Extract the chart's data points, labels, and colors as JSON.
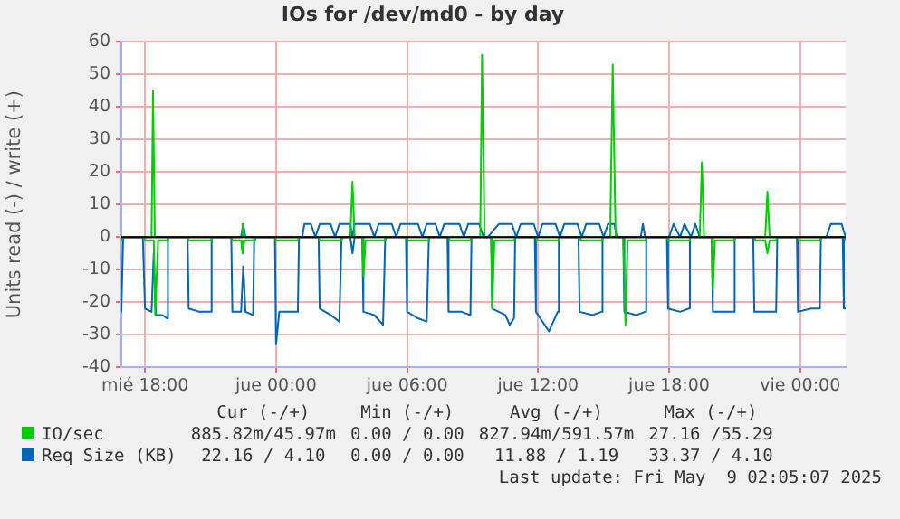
{
  "chart_data": {
    "type": "line",
    "title": "IOs for /dev/md0 - by day",
    "ylabel": "Units read (-) / write (+)",
    "xlim": [
      "2025-05-07T16:55",
      "2025-05-09T02:05"
    ],
    "xticks": [
      {
        "value": "2025-05-07T18:00",
        "label": "mié 18:00"
      },
      {
        "value": "2025-05-08T00:00",
        "label": "jue 00:00"
      },
      {
        "value": "2025-05-08T06:00",
        "label": "jue 06:00"
      },
      {
        "value": "2025-05-08T12:00",
        "label": "jue 12:00"
      },
      {
        "value": "2025-05-08T18:00",
        "label": "jue 18:00"
      },
      {
        "value": "2025-05-09T00:00",
        "label": "vie 00:00"
      }
    ],
    "ylim": [
      -40,
      60
    ],
    "yticks": [
      -40,
      -30,
      -20,
      -10,
      0,
      10,
      20,
      30,
      40,
      50,
      60
    ],
    "grid": true,
    "legend": "bottom",
    "marker": "none",
    "line_style": "solid",
    "ref_lines": [
      {
        "axis": "y",
        "value": 0,
        "color": "#000000"
      }
    ],
    "series": [
      {
        "color": "#00cc00",
        "x": [
          "2025-05-07T16:55",
          "2025-05-07T17:00",
          "2025-05-07T17:57",
          "2025-05-07T18:00",
          "2025-05-07T18:24",
          "2025-05-07T18:28",
          "2025-05-07T18:36",
          "2025-05-07T19:00",
          "2025-05-07T19:03",
          "2025-05-07T19:57",
          "2025-05-07T20:00",
          "2025-05-07T21:00",
          "2025-05-07T21:03",
          "2025-05-07T21:57",
          "2025-05-07T22:00",
          "2025-05-07T22:24",
          "2025-05-07T22:28",
          "2025-05-07T22:33",
          "2025-05-07T23:00",
          "2025-05-07T23:03",
          "2025-05-07T23:57",
          "2025-05-08T00:00",
          "2025-05-08T01:00",
          "2025-05-08T01:03",
          "2025-05-08T01:57",
          "2025-05-08T02:00",
          "2025-05-08T03:00",
          "2025-05-08T03:03",
          "2025-05-08T03:57",
          "2025-05-08T04:00",
          "2025-05-08T04:06",
          "2025-05-08T05:00",
          "2025-05-08T05:03",
          "2025-05-08T05:57",
          "2025-05-08T06:00",
          "2025-05-08T07:00",
          "2025-05-08T07:03",
          "2025-05-08T07:54",
          "2025-05-08T07:57",
          "2025-05-08T08:54",
          "2025-05-08T08:57",
          "2025-05-08T09:51",
          "2025-05-08T09:54",
          "2025-05-08T10:00",
          "2025-05-08T10:54",
          "2025-05-08T10:57",
          "2025-05-08T11:54",
          "2025-05-08T11:57",
          "2025-05-08T12:54",
          "2025-05-08T12:57",
          "2025-05-08T13:54",
          "2025-05-08T13:57",
          "2025-05-08T14:54",
          "2025-05-08T14:57",
          "2025-05-08T15:54",
          "2025-05-08T16:00",
          "2025-05-08T16:06",
          "2025-05-08T16:54",
          "2025-05-08T16:57",
          "2025-05-08T17:54",
          "2025-05-08T17:57",
          "2025-05-08T18:54",
          "2025-05-08T18:57",
          "2025-05-08T19:57",
          "2025-05-08T20:00",
          "2025-05-08T20:06",
          "2025-05-08T20:57",
          "2025-05-08T21:00",
          "2025-05-08T21:54",
          "2025-05-08T21:57",
          "2025-05-08T22:24",
          "2025-05-08T22:30",
          "2025-05-08T22:36",
          "2025-05-08T22:54",
          "2025-05-08T22:57",
          "2025-05-08T23:54",
          "2025-05-08T23:57",
          "2025-05-09T00:54",
          "2025-05-09T00:57",
          "2025-05-09T02:00",
          "2025-05-09T02:05"
        ],
        "values": [
          -1,
          0,
          0,
          -1,
          -1,
          -24,
          -1,
          -1,
          0,
          0,
          -1,
          -1,
          0,
          0,
          -1,
          -1,
          -5,
          -1,
          -1,
          0,
          0,
          -1,
          -1,
          0,
          0,
          -1,
          -1,
          0,
          0,
          -12,
          -1,
          -1,
          0,
          0,
          -1,
          -1,
          0,
          0,
          -1,
          -1,
          0,
          0,
          -22,
          -1,
          -1,
          0,
          0,
          -1,
          -1,
          0,
          0,
          -1,
          -1,
          0,
          0,
          -27,
          -1,
          -1,
          0,
          0,
          -1,
          -1,
          0,
          0,
          -16,
          -1,
          -1,
          0,
          0,
          -1,
          -1,
          -5,
          -1,
          -1,
          0,
          0,
          -1,
          -1,
          0,
          0,
          -1
        ]
      },
      {
        "name": "IO/sec",
        "color": "#00cc00",
        "x": [
          "2025-05-07T16:55",
          "2025-05-07T18:18",
          "2025-05-07T18:22",
          "2025-05-07T18:27",
          "2025-05-07T22:24",
          "2025-05-07T22:28",
          "2025-05-07T22:33",
          "2025-05-08T03:24",
          "2025-05-08T03:30",
          "2025-05-08T03:36",
          "2025-05-08T09:21",
          "2025-05-08T09:26",
          "2025-05-08T09:33",
          "2025-05-08T15:18",
          "2025-05-08T15:25",
          "2025-05-08T15:33",
          "2025-05-08T19:24",
          "2025-05-08T19:30",
          "2025-05-08T19:36",
          "2025-05-08T22:24",
          "2025-05-08T22:30",
          "2025-05-08T22:36",
          "2025-05-09T02:05"
        ],
        "values": [
          0,
          0,
          45,
          0,
          0,
          4,
          0,
          0,
          17,
          0,
          0,
          56,
          0,
          0,
          53,
          0,
          0,
          23,
          0,
          0,
          14,
          0,
          0
        ]
      },
      {
        "color": "#0066b3",
        "x": [
          "2025-05-07T16:55",
          "2025-05-07T17:00",
          "2025-05-07T17:54",
          "2025-05-07T18:00",
          "2025-05-07T18:18",
          "2025-05-07T18:24",
          "2025-05-07T18:30",
          "2025-05-07T18:48",
          "2025-05-07T19:00",
          "2025-05-07T19:03",
          "2025-05-07T19:57",
          "2025-05-07T20:00",
          "2025-05-07T20:30",
          "2025-05-07T21:00",
          "2025-05-07T21:03",
          "2025-05-07T21:57",
          "2025-05-07T22:00",
          "2025-05-07T22:24",
          "2025-05-07T22:30",
          "2025-05-07T22:36",
          "2025-05-07T22:57",
          "2025-05-07T23:00",
          "2025-05-07T23:57",
          "2025-05-08T00:00",
          "2025-05-08T00:09",
          "2025-05-08T01:00",
          "2025-05-08T01:03",
          "2025-05-08T01:57",
          "2025-05-08T02:00",
          "2025-05-08T02:30",
          "2025-05-08T02:54",
          "2025-05-08T03:00",
          "2025-05-08T03:24",
          "2025-05-08T03:30",
          "2025-05-08T03:36",
          "2025-05-08T03:57",
          "2025-05-08T04:00",
          "2025-05-08T04:30",
          "2025-05-08T04:54",
          "2025-05-08T05:00",
          "2025-05-08T05:57",
          "2025-05-08T06:00",
          "2025-05-08T06:30",
          "2025-05-08T06:54",
          "2025-05-08T07:00",
          "2025-05-08T07:51",
          "2025-05-08T07:54",
          "2025-05-08T08:30",
          "2025-05-08T08:54",
          "2025-05-08T08:57",
          "2025-05-08T09:51",
          "2025-05-08T09:54",
          "2025-05-08T10:30",
          "2025-05-08T10:42",
          "2025-05-08T10:54",
          "2025-05-08T10:57",
          "2025-05-08T11:51",
          "2025-05-08T11:54",
          "2025-05-08T12:30",
          "2025-05-08T12:54",
          "2025-05-08T12:57",
          "2025-05-08T13:51",
          "2025-05-08T13:54",
          "2025-05-08T14:30",
          "2025-05-08T14:54",
          "2025-05-08T14:57",
          "2025-05-08T15:54",
          "2025-05-08T15:57",
          "2025-05-08T16:30",
          "2025-05-08T16:54",
          "2025-05-08T16:57",
          "2025-05-08T17:54",
          "2025-05-08T17:57",
          "2025-05-08T18:30",
          "2025-05-08T18:54",
          "2025-05-08T18:57",
          "2025-05-08T19:57",
          "2025-05-08T20:00",
          "2025-05-08T20:30",
          "2025-05-08T20:57",
          "2025-05-08T21:00",
          "2025-05-08T21:51",
          "2025-05-08T21:54",
          "2025-05-08T22:30",
          "2025-05-08T22:54",
          "2025-05-08T22:57",
          "2025-05-08T23:51",
          "2025-05-08T23:54",
          "2025-05-09T00:30",
          "2025-05-09T00:54",
          "2025-05-09T00:57",
          "2025-05-09T01:57",
          "2025-05-09T02:00",
          "2025-05-09T02:05"
        ],
        "values": [
          -23,
          0,
          0,
          -22,
          -23,
          -5,
          -24,
          -24,
          -25,
          0,
          0,
          -22,
          -23,
          -23,
          0,
          0,
          -23,
          -23,
          -9,
          -23,
          -24,
          0,
          0,
          -33,
          -23,
          -23,
          0,
          0,
          -22,
          -24,
          -26,
          0,
          0,
          -5,
          0,
          0,
          -23,
          -24,
          -27,
          0,
          0,
          -23,
          -25,
          -26,
          0,
          0,
          -23,
          -23,
          -24,
          0,
          0,
          -22,
          -24,
          -27,
          -25,
          0,
          0,
          -23,
          -29,
          -23,
          0,
          0,
          -23,
          -24,
          -23,
          0,
          0,
          -23,
          -24,
          -23,
          0,
          0,
          -22,
          -23,
          -22,
          0,
          0,
          -23,
          -23,
          -23,
          0,
          0,
          -23,
          -23,
          -23,
          0,
          0,
          -23,
          -22,
          -22,
          0,
          0,
          -22,
          -22
        ]
      },
      {
        "name": "Req Size (KB)",
        "color": "#0066b3",
        "x": [
          "2025-05-07T16:55",
          "2025-05-07T22:24",
          "2025-05-07T22:30",
          "2025-05-07T22:36",
          "2025-05-08T01:12",
          "2025-05-08T01:18",
          "2025-05-08T01:36",
          "2025-05-08T01:48",
          "2025-05-08T02:00",
          "2025-05-08T02:30",
          "2025-05-08T02:42",
          "2025-05-08T02:54",
          "2025-05-08T03:24",
          "2025-05-08T03:30",
          "2025-05-08T03:36",
          "2025-05-08T04:18",
          "2025-05-08T04:30",
          "2025-05-08T04:42",
          "2025-05-08T05:18",
          "2025-05-08T05:30",
          "2025-05-08T05:42",
          "2025-05-08T06:30",
          "2025-05-08T06:42",
          "2025-05-08T06:54",
          "2025-05-08T07:18",
          "2025-05-08T07:30",
          "2025-05-08T07:42",
          "2025-05-08T08:24",
          "2025-05-08T08:36",
          "2025-05-08T08:48",
          "2025-05-08T09:18",
          "2025-05-08T09:30",
          "2025-05-08T09:42",
          "2025-05-08T10:12",
          "2025-05-08T10:48",
          "2025-05-08T11:00",
          "2025-05-08T11:12",
          "2025-05-08T11:48",
          "2025-05-08T12:00",
          "2025-05-08T12:12",
          "2025-05-08T12:48",
          "2025-05-08T13:00",
          "2025-05-08T13:12",
          "2025-05-08T13:48",
          "2025-05-08T14:00",
          "2025-05-08T14:12",
          "2025-05-08T14:48",
          "2025-05-08T15:00",
          "2025-05-08T15:12",
          "2025-05-08T15:30",
          "2025-05-08T15:36",
          "2025-05-08T16:42",
          "2025-05-08T16:48",
          "2025-05-08T16:54",
          "2025-05-08T18:00",
          "2025-05-08T18:12",
          "2025-05-08T18:30",
          "2025-05-08T18:42",
          "2025-05-08T19:00",
          "2025-05-08T19:12",
          "2025-05-08T19:24",
          "2025-05-09T01:12",
          "2025-05-09T01:24",
          "2025-05-09T01:54",
          "2025-05-09T02:05"
        ],
        "values": [
          0,
          0,
          4,
          0,
          0,
          4,
          4,
          0,
          4,
          4,
          0,
          4,
          4,
          0,
          4,
          4,
          0,
          4,
          4,
          0,
          4,
          4,
          0,
          4,
          4,
          0,
          4,
          4,
          0,
          4,
          4,
          0,
          0,
          4,
          4,
          0,
          4,
          4,
          0,
          4,
          4,
          0,
          4,
          4,
          0,
          4,
          4,
          0,
          4,
          4,
          0,
          0,
          4,
          0,
          0,
          4,
          0,
          4,
          0,
          4,
          0,
          0,
          4,
          4,
          0
        ]
      }
    ],
    "annotations": [
      "Cur (-/+)",
      "Min (-/+)",
      "Avg (-/+)",
      "Max (-/+)",
      "885.82m/45.97m",
      "0.00 / 0.00",
      "827.94m/591.57m",
      "27.16 /55.29",
      "22.16 / 4.10",
      "0.00 / 0.00",
      "11.88 / 1.19",
      "33.37 / 4.10",
      "Last update: Fri May  9 02:05:07 2025"
    ]
  }
}
